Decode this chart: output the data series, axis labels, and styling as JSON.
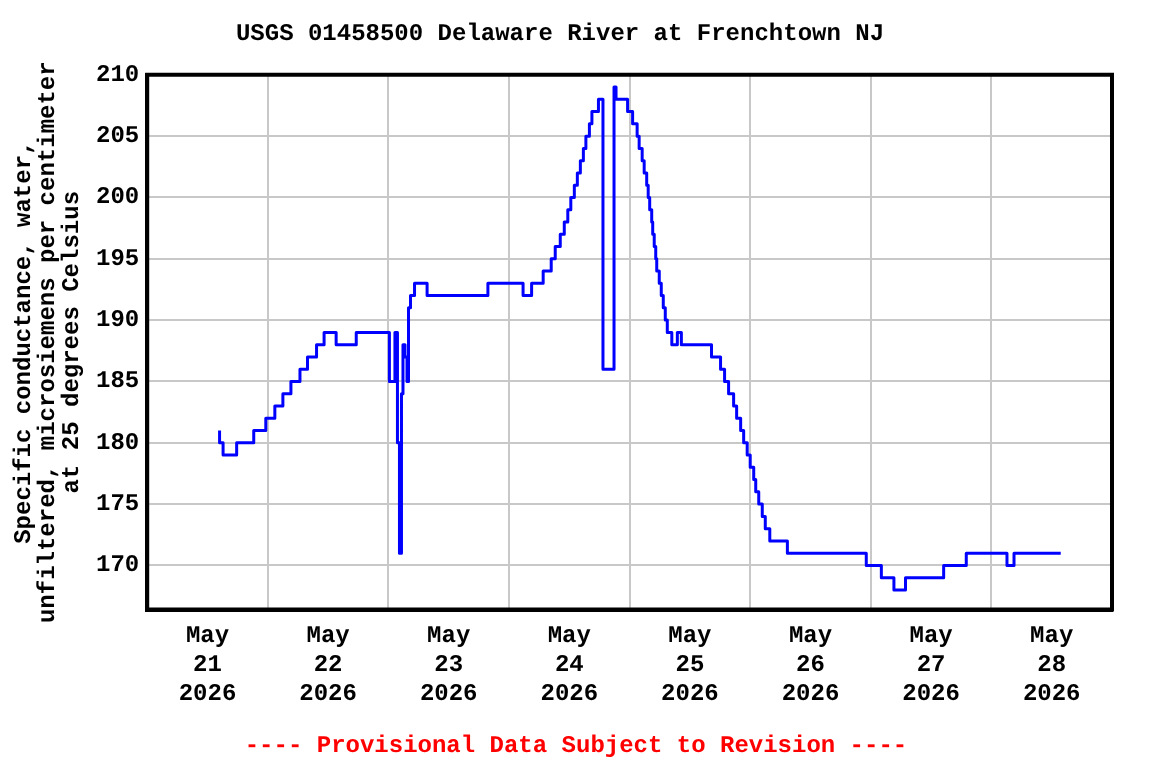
{
  "chart_data": {
    "type": "step",
    "title": "USGS 01458500 Delaware River at Frenchtown NJ",
    "ylabel": "Specific conductance, water, unfiltered, microsiemens per centimeter at 25 degrees Celsius",
    "annotations": [
      "---- Provisional Data Subject to Revision ----"
    ],
    "x": [
      "2026-05-21T14:24",
      "2026-05-21T15:06",
      "2026-05-21T17:48",
      "2026-05-21T21:12",
      "2026-05-21T23:36",
      "2026-05-22T01:24",
      "2026-05-22T03:00",
      "2026-05-22T04:36",
      "2026-05-22T06:24",
      "2026-05-22T07:54",
      "2026-05-22T09:42",
      "2026-05-22T11:12",
      "2026-05-22T13:36",
      "2026-05-22T17:36",
      "2026-05-23T00:12",
      "2026-05-23T01:18",
      "2026-05-23T01:48",
      "2026-05-23T02:12",
      "2026-05-23T02:36",
      "2026-05-23T02:54",
      "2026-05-23T03:18",
      "2026-05-23T03:42",
      "2026-05-23T04:00",
      "2026-05-23T04:24",
      "2026-05-23T05:12",
      "2026-05-23T07:42",
      "2026-05-23T19:48",
      "2026-05-24T02:48",
      "2026-05-24T04:30",
      "2026-05-24T06:48",
      "2026-05-24T08:24",
      "2026-05-24T09:12",
      "2026-05-24T10:12",
      "2026-05-24T11:00",
      "2026-05-24T11:42",
      "2026-05-24T12:18",
      "2026-05-24T13:00",
      "2026-05-24T13:36",
      "2026-05-24T14:12",
      "2026-05-24T14:48",
      "2026-05-24T15:18",
      "2026-05-24T16:00",
      "2026-05-24T16:30",
      "2026-05-24T17:48",
      "2026-05-24T18:42",
      "2026-05-24T20:54",
      "2026-05-24T21:18",
      "2026-05-24T23:36",
      "2026-05-25T00:36",
      "2026-05-25T01:30",
      "2026-05-25T01:54",
      "2026-05-25T02:30",
      "2026-05-25T02:54",
      "2026-05-25T03:24",
      "2026-05-25T03:42",
      "2026-05-25T04:00",
      "2026-05-25T04:24",
      "2026-05-25T04:36",
      "2026-05-25T04:54",
      "2026-05-25T05:12",
      "2026-05-25T05:24",
      "2026-05-25T05:54",
      "2026-05-25T06:18",
      "2026-05-25T06:42",
      "2026-05-25T07:06",
      "2026-05-25T07:30",
      "2026-05-25T08:24",
      "2026-05-25T09:30",
      "2026-05-25T10:18",
      "2026-05-25T16:18",
      "2026-05-25T18:06",
      "2026-05-25T18:54",
      "2026-05-25T19:42",
      "2026-05-25T20:42",
      "2026-05-25T21:18",
      "2026-05-25T22:06",
      "2026-05-25T22:42",
      "2026-05-25T23:24",
      "2026-05-26T00:00",
      "2026-05-26T00:42",
      "2026-05-26T01:06",
      "2026-05-26T01:42",
      "2026-05-26T02:24",
      "2026-05-26T03:00",
      "2026-05-26T03:54",
      "2026-05-26T07:24",
      "2026-05-26T23:06",
      "2026-05-27T02:06",
      "2026-05-27T04:36",
      "2026-05-27T06:54",
      "2026-05-27T14:30",
      "2026-05-27T19:00",
      "2026-05-28T03:06",
      "2026-05-28T04:30",
      "2026-05-28T11:54",
      "2026-05-28T13:48"
    ],
    "series": [
      {
        "color": "#0000ff",
        "values": [
          181,
          180,
          179,
          180,
          181,
          182,
          183,
          184,
          185,
          186,
          187,
          188,
          189,
          188,
          189,
          185,
          189,
          180,
          171,
          184,
          188,
          187,
          185,
          191,
          192,
          193,
          192,
          193,
          192,
          193,
          194,
          195,
          196,
          197,
          198,
          199,
          200,
          201,
          202,
          203,
          204,
          205,
          206,
          207,
          208,
          186,
          209,
          208,
          207,
          206,
          205,
          204,
          203,
          202,
          201,
          200,
          199,
          198,
          197,
          196,
          195,
          194,
          193,
          192,
          191,
          190,
          189,
          188,
          189,
          188,
          187,
          186,
          185,
          184,
          183,
          182,
          181,
          180,
          179,
          178,
          177,
          176,
          175,
          174,
          173,
          172,
          171,
          170,
          169,
          168,
          169,
          170,
          171,
          170,
          171,
          171
        ]
      }
    ],
    "xlim": [
      "2026-05-21T00:00",
      "2026-05-29T00:00"
    ],
    "xticks": [
      {
        "value": "2026-05-21T12:00",
        "label": "May 21 2026"
      },
      {
        "value": "2026-05-22T00:00",
        "label": null
      },
      {
        "value": "2026-05-22T12:00",
        "label": "May 22 2026"
      },
      {
        "value": "2026-05-23T00:00",
        "label": null
      },
      {
        "value": "2026-05-23T12:00",
        "label": "May 23 2026"
      },
      {
        "value": "2026-05-24T00:00",
        "label": null
      },
      {
        "value": "2026-05-24T12:00",
        "label": "May 24 2026"
      },
      {
        "value": "2026-05-25T00:00",
        "label": null
      },
      {
        "value": "2026-05-25T12:00",
        "label": "May 25 2026"
      },
      {
        "value": "2026-05-26T00:00",
        "label": null
      },
      {
        "value": "2026-05-26T12:00",
        "label": "May 26 2026"
      },
      {
        "value": "2026-05-27T00:00",
        "label": null
      },
      {
        "value": "2026-05-27T12:00",
        "label": "May 27 2026"
      },
      {
        "value": "2026-05-28T00:00",
        "label": null
      },
      {
        "value": "2026-05-28T12:00",
        "label": "May 28 2026"
      }
    ],
    "ylim": [
      166.4,
      210
    ],
    "yticks": [
      170,
      175,
      180,
      185,
      190,
      195,
      200,
      205,
      210
    ],
    "grid": true,
    "legend": false,
    "marker": "none",
    "line_style": "solid"
  }
}
